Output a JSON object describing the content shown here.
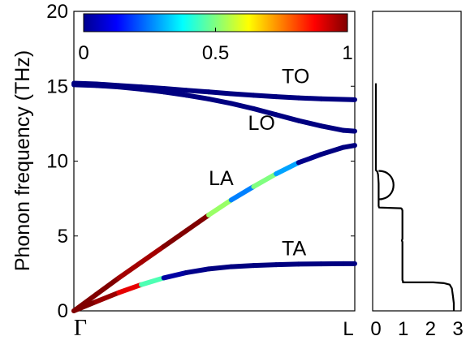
{
  "chart_data": [
    {
      "type": "line",
      "ylabel": "Phonon frequency (THz)",
      "ylim": [
        0,
        20
      ],
      "yticks": [
        "0",
        "5",
        "10",
        "15",
        "20"
      ],
      "xlim": [
        0,
        1
      ],
      "xticks": [
        {
          "x": 0,
          "label": "Γ"
        },
        {
          "x": 1,
          "label": "L"
        }
      ],
      "colorbar": {
        "colormap": "jet",
        "range": [
          0,
          1
        ],
        "ticks": [
          {
            "v": 0,
            "label": "0"
          },
          {
            "v": 0.5,
            "label": "0.5"
          },
          {
            "v": 1,
            "label": "1"
          }
        ]
      },
      "branches": [
        {
          "label": "TA",
          "x": [
            0,
            0.08,
            0.16,
            0.24,
            0.32,
            0.4,
            0.48,
            0.56,
            0.64,
            0.72,
            0.8,
            0.88,
            0.96,
            1.0
          ],
          "y": [
            0,
            0.62,
            1.22,
            1.75,
            2.2,
            2.55,
            2.8,
            2.95,
            3.03,
            3.08,
            3.12,
            3.14,
            3.15,
            3.15
          ],
          "c": [
            1,
            1,
            0.95,
            0.85,
            0.05,
            0.02,
            0,
            0,
            0,
            0,
            0,
            0,
            0,
            0
          ]
        },
        {
          "label": "LA",
          "x": [
            0,
            0.08,
            0.16,
            0.24,
            0.32,
            0.4,
            0.48,
            0.56,
            0.64,
            0.72,
            0.8,
            0.88,
            0.96,
            1.0
          ],
          "y": [
            0,
            1.1,
            2.2,
            3.25,
            4.3,
            5.35,
            6.4,
            7.4,
            8.3,
            9.15,
            9.9,
            10.45,
            10.92,
            11.05
          ],
          "c": [
            1,
            1,
            1,
            0.93,
            1,
            1,
            1,
            0.05,
            0.45,
            0.55,
            0.02,
            0,
            0,
            0
          ]
        },
        {
          "label": "LO",
          "x": [
            0,
            0.08,
            0.16,
            0.24,
            0.32,
            0.4,
            0.48,
            0.56,
            0.64,
            0.72,
            0.8,
            0.88,
            0.96,
            1.0
          ],
          "y": [
            15.1,
            15.05,
            14.95,
            14.8,
            14.62,
            14.4,
            14.15,
            13.85,
            13.5,
            13.1,
            12.7,
            12.35,
            12.05,
            12.0
          ],
          "c": [
            0,
            0,
            0,
            0,
            0,
            0,
            0,
            0,
            0,
            0,
            0,
            0,
            0,
            0
          ]
        },
        {
          "label": "TO",
          "x": [
            0,
            0.08,
            0.16,
            0.24,
            0.32,
            0.4,
            0.48,
            0.56,
            0.64,
            0.72,
            0.8,
            0.88,
            0.96,
            1.0
          ],
          "y": [
            15.2,
            15.15,
            15.05,
            14.95,
            14.85,
            14.73,
            14.62,
            14.5,
            14.4,
            14.3,
            14.22,
            14.16,
            14.12,
            14.1
          ],
          "c": [
            0,
            0,
            0,
            0,
            0,
            0,
            0,
            0,
            0,
            0,
            0,
            0,
            0,
            0
          ]
        }
      ],
      "labels": [
        {
          "text": "TO",
          "x": 0.74,
          "y": 15.2
        },
        {
          "text": "LO",
          "x": 0.62,
          "y": 12.1
        },
        {
          "text": "LA",
          "x": 0.48,
          "y": 8.4
        },
        {
          "text": "TA",
          "x": 0.74,
          "y": 3.7
        }
      ]
    },
    {
      "type": "line",
      "xlim": [
        0,
        3
      ],
      "ylim": [
        0,
        20
      ],
      "xticks": [
        {
          "x": 0,
          "label": "0"
        },
        {
          "x": 1,
          "label": "1"
        },
        {
          "x": 2,
          "label": "2"
        },
        {
          "x": 3,
          "label": "3"
        }
      ],
      "x": [
        0,
        0,
        0.05,
        0.08,
        0.1,
        0.1,
        0.1,
        0.12,
        0.92,
        0.95,
        0.97,
        0.97,
        0.95,
        0.97,
        0.97,
        0.99,
        0.99,
        2.1,
        2.5,
        2.7,
        2.78,
        2.82,
        2.85,
        2.85
      ],
      "y": [
        15.2,
        9.4,
        9.3,
        9.1,
        8.5,
        7.6,
        7.0,
        6.9,
        6.85,
        6.8,
        6.7,
        4.8,
        4.7,
        4.6,
        2.05,
        2.0,
        1.9,
        1.9,
        1.85,
        1.75,
        1.5,
        1.0,
        0.5,
        0
      ],
      "bump": {
        "y_top": 9.35,
        "y_bottom": 7.45,
        "x_max": 0.65
      }
    }
  ]
}
